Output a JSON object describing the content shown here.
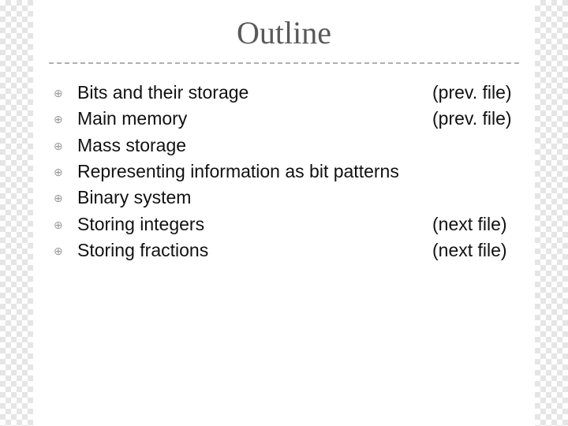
{
  "slide": {
    "title": "Outline",
    "title_color": "#595959",
    "title_fontsize": 40,
    "title_fontfamily": "Times New Roman",
    "background_color": "#ffffff",
    "checker_color": "#e5e5e5",
    "divider_color": "#b0b0b0",
    "bullet_glyph": "⊕",
    "bullet_color": "#9a9a9a",
    "body_fontsize": 23,
    "body_color": "#111111",
    "items": [
      {
        "text": "Bits and their storage",
        "note": "(prev. file)"
      },
      {
        "text": "Main memory",
        "note": "(prev. file)"
      },
      {
        "text": "Mass storage",
        "note": ""
      },
      {
        "text": "Representing information as bit patterns",
        "note": ""
      },
      {
        "text": "Binary system",
        "note": ""
      },
      {
        "text": "Storing integers",
        "note": "(next file)"
      },
      {
        "text": "Storing fractions",
        "note": "(next file)"
      }
    ]
  }
}
